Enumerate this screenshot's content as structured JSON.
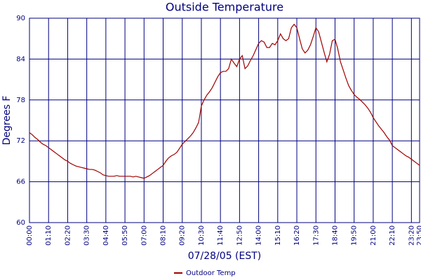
{
  "chart_data": {
    "type": "line",
    "title": "Outside Temperature",
    "x_label": "07/28/05 (EST)",
    "y_label": "Degrees F",
    "x": [
      "00:00",
      "00:10",
      "00:20",
      "00:30",
      "00:40",
      "00:50",
      "01:00",
      "01:10",
      "01:20",
      "01:30",
      "01:40",
      "01:50",
      "02:00",
      "02:10",
      "02:20",
      "02:30",
      "02:40",
      "02:50",
      "03:00",
      "03:10",
      "03:20",
      "03:30",
      "03:40",
      "03:50",
      "04:00",
      "04:10",
      "04:20",
      "04:30",
      "04:40",
      "04:50",
      "05:00",
      "05:10",
      "05:20",
      "05:30",
      "05:40",
      "05:50",
      "06:00",
      "06:10",
      "06:20",
      "06:30",
      "06:40",
      "06:50",
      "07:00",
      "07:10",
      "07:20",
      "07:30",
      "07:40",
      "07:50",
      "08:00",
      "08:10",
      "08:20",
      "08:30",
      "08:40",
      "08:50",
      "09:00",
      "09:10",
      "09:20",
      "09:30",
      "09:40",
      "09:50",
      "10:00",
      "10:10",
      "10:20",
      "10:30",
      "10:40",
      "10:50",
      "11:00",
      "11:10",
      "11:20",
      "11:30",
      "11:40",
      "11:50",
      "12:00",
      "12:10",
      "12:20",
      "12:30",
      "12:40",
      "12:50",
      "13:00",
      "13:10",
      "13:20",
      "13:30",
      "13:40",
      "13:50",
      "14:00",
      "14:10",
      "14:20",
      "14:30",
      "14:40",
      "14:50",
      "15:00",
      "15:10",
      "15:20",
      "15:30",
      "15:40",
      "15:50",
      "16:00",
      "16:10",
      "16:20",
      "16:30",
      "16:40",
      "16:50",
      "17:00",
      "17:10",
      "17:20",
      "17:30",
      "17:40",
      "17:50",
      "18:00",
      "18:10",
      "18:20",
      "18:30",
      "18:40",
      "18:50",
      "19:00",
      "19:10",
      "19:20",
      "19:30",
      "19:40",
      "19:50",
      "20:00",
      "20:10",
      "20:20",
      "20:30",
      "20:40",
      "20:50",
      "21:00",
      "21:10",
      "21:20",
      "21:30",
      "21:40",
      "21:50",
      "22:00",
      "22:10",
      "22:20",
      "22:30",
      "22:40",
      "22:50",
      "23:00",
      "23:10",
      "23:20",
      "23:30",
      "23:40",
      "23:50"
    ],
    "series": [
      {
        "name": "Outdoor Temp",
        "color": "#a00000",
        "values": [
          73.2,
          72.9,
          72.5,
          72.2,
          71.8,
          71.5,
          71.3,
          71.0,
          70.7,
          70.4,
          70.1,
          69.8,
          69.5,
          69.2,
          69.0,
          68.7,
          68.5,
          68.3,
          68.2,
          68.1,
          68.0,
          67.9,
          67.8,
          67.8,
          67.7,
          67.5,
          67.3,
          67.0,
          66.9,
          66.8,
          66.8,
          66.8,
          66.9,
          66.8,
          66.8,
          66.8,
          66.8,
          66.8,
          66.7,
          66.8,
          66.7,
          66.6,
          66.5,
          66.7,
          66.9,
          67.2,
          67.5,
          67.8,
          68.1,
          68.4,
          69.0,
          69.5,
          69.8,
          70.0,
          70.3,
          70.9,
          71.5,
          71.9,
          72.3,
          72.7,
          73.2,
          73.9,
          74.7,
          77.1,
          78.0,
          78.7,
          79.2,
          79.8,
          80.6,
          81.4,
          82.0,
          82.2,
          82.2,
          82.6,
          84.0,
          83.4,
          82.9,
          84.0,
          84.5,
          82.6,
          83.0,
          83.8,
          84.5,
          85.4,
          86.3,
          86.7,
          86.5,
          85.7,
          85.7,
          86.3,
          86.1,
          86.7,
          87.7,
          87.0,
          86.7,
          87.0,
          88.6,
          89.1,
          88.6,
          87.0,
          85.5,
          84.9,
          85.3,
          86.1,
          87.3,
          88.6,
          88.0,
          86.5,
          85.0,
          83.6,
          84.7,
          86.7,
          86.9,
          85.5,
          83.6,
          82.4,
          81.2,
          80.1,
          79.4,
          78.8,
          78.4,
          78.1,
          77.7,
          77.3,
          76.8,
          76.2,
          75.4,
          74.8,
          74.2,
          73.7,
          73.2,
          72.6,
          72.1,
          71.3,
          71.0,
          70.7,
          70.4,
          70.1,
          69.8,
          69.6,
          69.3,
          69.0,
          68.7,
          68.4
        ]
      }
    ],
    "xlim": [
      "00:00",
      "23:50"
    ],
    "xticks": [
      "00:00",
      "01:10",
      "02:20",
      "03:30",
      "04:40",
      "05:50",
      "07:00",
      "08:10",
      "09:20",
      "10:30",
      "11:40",
      "12:50",
      "14:00",
      "15:10",
      "16:20",
      "17:30",
      "18:40",
      "19:50",
      "21:00",
      "22:10",
      "23:20",
      "23:50"
    ],
    "ylim": [
      60,
      90
    ],
    "yticks": [
      60,
      66,
      72,
      78,
      84,
      90
    ],
    "grid": true,
    "legend": "bottom"
  }
}
